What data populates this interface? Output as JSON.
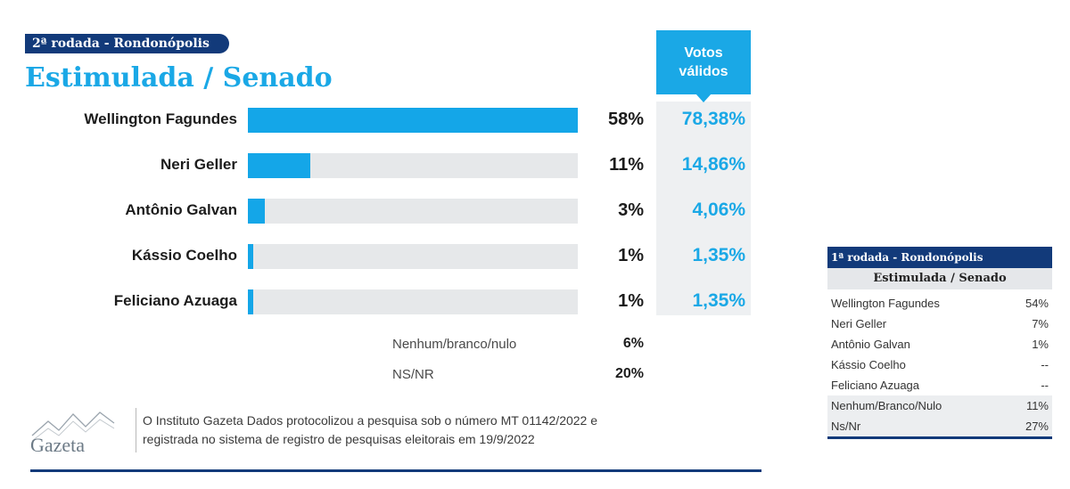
{
  "header": {
    "round_label": "2ª rodada - Rondonópolis",
    "title": "Estimulada / Senado",
    "valid_votes_label_1": "Votos",
    "valid_votes_label_2": "válidos"
  },
  "chart_data": {
    "type": "bar",
    "title": "Estimulada / Senado",
    "categories": [
      "Wellington Fagundes",
      "Neri Geller",
      "Antônio Galvan",
      "Kássio Coelho",
      "Feliciano Azuaga"
    ],
    "values": [
      58,
      11,
      3,
      1,
      1
    ],
    "value_labels": [
      "58%",
      "11%",
      "3%",
      "1%",
      "1%"
    ],
    "valid_votes": [
      "78,38%",
      "14,86%",
      "4,06%",
      "1,35%",
      "1,35%"
    ],
    "xlim": [
      0,
      58
    ]
  },
  "extras": [
    {
      "label": "Nenhum/branco/nulo",
      "value": "6%"
    },
    {
      "label": "NS/NR",
      "value": "20%"
    }
  ],
  "footer": {
    "logo_text": "Gazeta",
    "note_line1": "O Instituto Gazeta Dados protocolizou a pesquisa sob o número MT 01142/2022 e",
    "note_line2": "registrada no sistema de registro de pesquisas eleitorais em 19/9/2022"
  },
  "side_table": {
    "round_label": "1ª rodada - Rondonópolis",
    "title": "Estimulada / Senado",
    "rows": [
      {
        "name": "Wellington Fagundes",
        "value": "54%"
      },
      {
        "name": "Neri Geller",
        "value": "7%"
      },
      {
        "name": "Antônio Galvan",
        "value": "1%"
      },
      {
        "name": "Kássio Coelho",
        "value": "--"
      },
      {
        "name": "Feliciano Azuaga",
        "value": "--"
      },
      {
        "name": "Nenhum/Branco/Nulo",
        "value": "11%"
      },
      {
        "name": "Ns/Nr",
        "value": "27%"
      }
    ]
  },
  "colors": {
    "primary": "#14a6e8",
    "navy": "#123a7a",
    "track": "#e6e8ea"
  }
}
